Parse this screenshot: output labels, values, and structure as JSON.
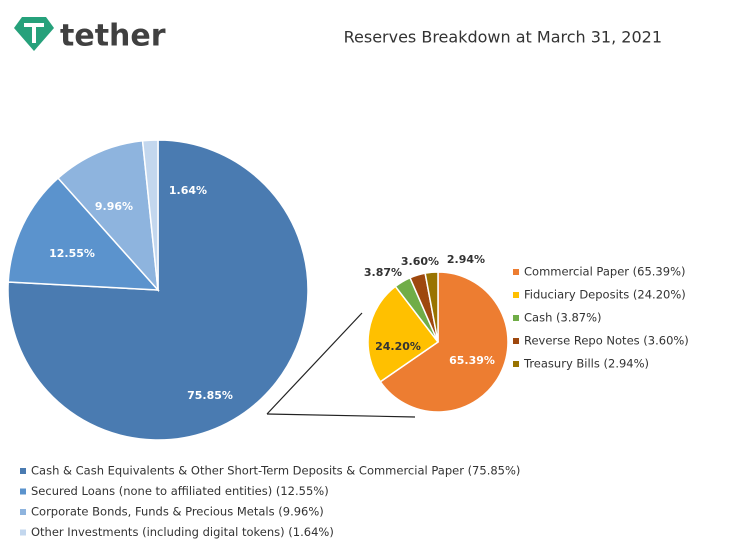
{
  "header": {
    "logo": "tether"
  },
  "chart_data": [
    {
      "type": "pie",
      "title": "Reserves Breakdown at March 31, 2021",
      "categories": [
        "Cash & Cash Equivalents & Other Short-Term Deposits & Commercial Paper (75.85%)",
        "Secured Loans (none to affiliated entities) (12.55%)",
        "Corporate Bonds, Funds & Precious Metals (9.96%)",
        "Other Investments (including digital tokens) (1.64%)"
      ],
      "values": [
        75.85,
        12.55,
        9.96,
        1.64
      ],
      "value_labels": [
        "75.85%",
        "12.55%",
        "9.96%",
        "1.64%"
      ],
      "colors": [
        "#4a7bb1",
        "#5b93cd",
        "#8eb4de",
        "#c3d7ee"
      ]
    },
    {
      "type": "pie",
      "categories": [
        "Commercial Paper (65.39%)",
        "Fiduciary Deposits (24.20%)",
        "Cash (3.87%)",
        "Reverse Repo Notes (3.60%)",
        "Treasury Bills (2.94%)"
      ],
      "values": [
        65.39,
        24.2,
        3.87,
        3.6,
        2.94
      ],
      "value_labels": [
        "65.39%",
        "24.20%",
        "3.87%",
        "3.60%",
        "2.94%"
      ],
      "colors": [
        "#ed7d31",
        "#ffc000",
        "#70ad47",
        "#9e480e",
        "#997300"
      ]
    }
  ]
}
